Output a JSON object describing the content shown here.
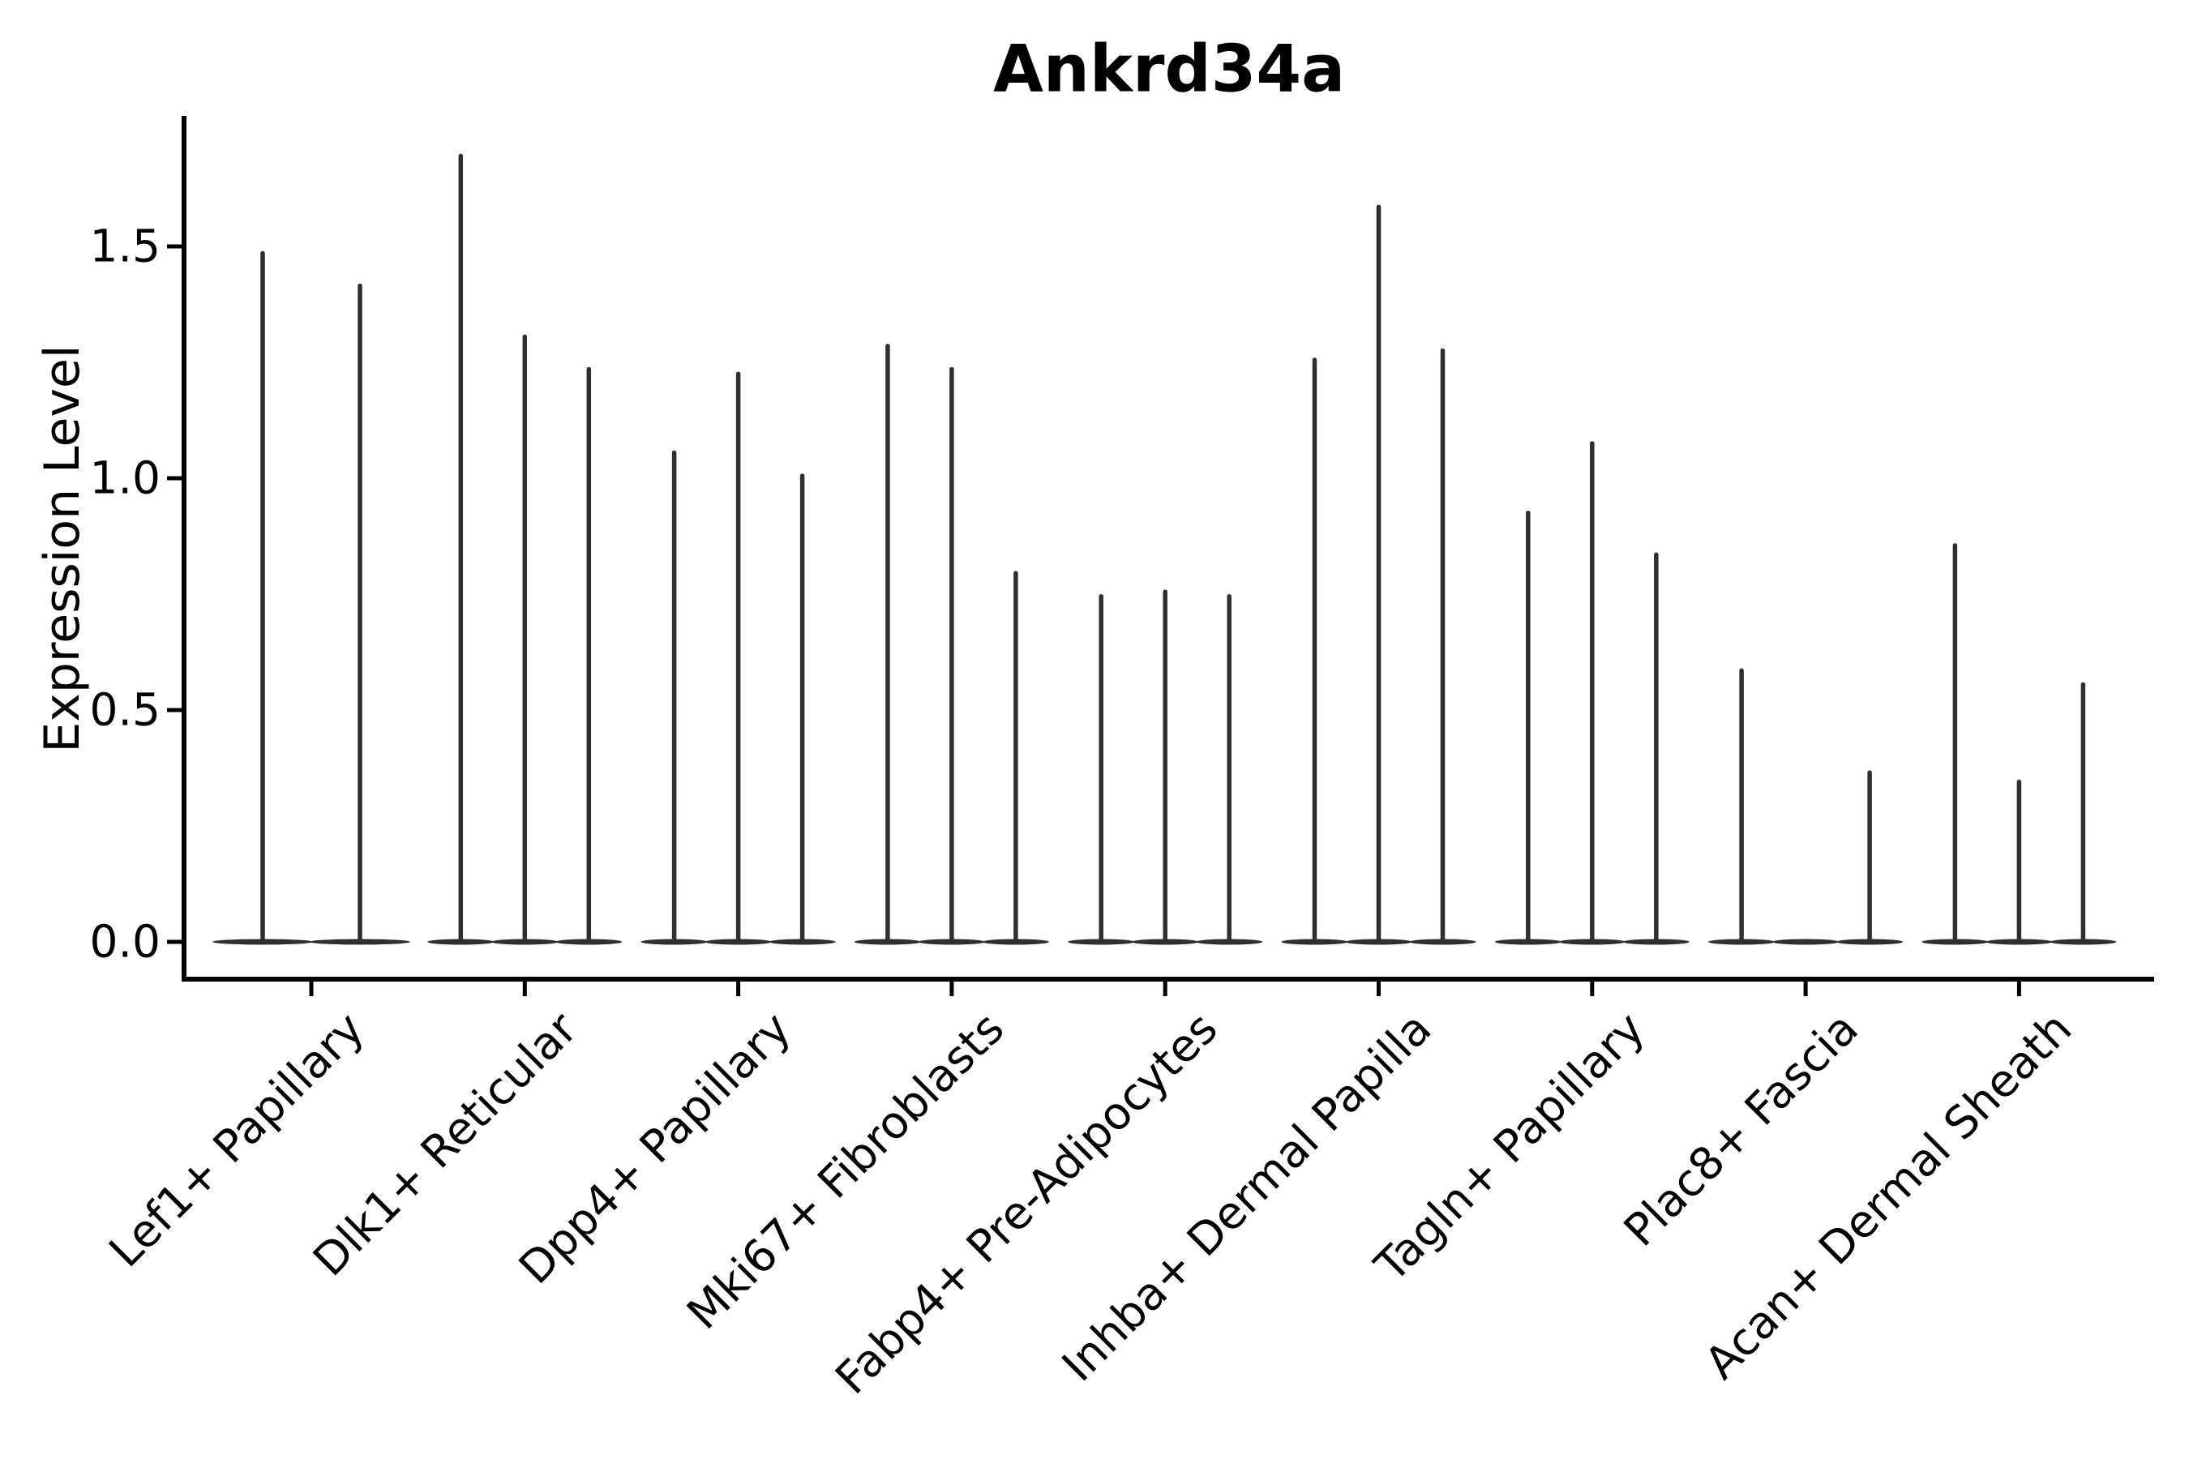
{
  "title": "Ankrd34a",
  "axes": {
    "ylabel": "Expression Level",
    "ytick_labels": [
      "0.0",
      "0.5",
      "1.0",
      "1.5"
    ]
  },
  "chart_data": {
    "type": "violin",
    "title": "Ankrd34a",
    "xlabel": "",
    "ylabel": "Expression Level",
    "ylim": [
      -0.09,
      1.78
    ],
    "yticks": [
      0.0,
      0.5,
      1.0,
      1.5
    ],
    "grid": false,
    "legend": false,
    "ink_color": "#2f2f2f",
    "axis_color": "#000000",
    "categories": [
      "Lef1+ Papillary",
      "Dlk1+ Reticular",
      "Dpp4+ Papillary",
      "Mki67+ Fibroblasts",
      "Fabp4+ Pre-Adipocytes",
      "Inhba+ Dermal Papilla",
      "Tagln+ Papillary",
      "Plac8+ Fascia",
      "Acan+ Dermal Sheath"
    ],
    "violins": [
      {
        "category": "Lef1+ Papillary",
        "maxima": [
          1.49,
          1.42
        ]
      },
      {
        "category": "Dlk1+ Reticular",
        "maxima": [
          1.7,
          1.31,
          1.24
        ]
      },
      {
        "category": "Dpp4+ Papillary",
        "maxima": [
          1.06,
          1.23,
          1.01
        ]
      },
      {
        "category": "Mki67+ Fibroblasts",
        "maxima": [
          1.29,
          1.24,
          0.8
        ]
      },
      {
        "category": "Fabp4+ Pre-Adipocytes",
        "maxima": [
          0.75,
          0.76,
          0.75
        ]
      },
      {
        "category": "Inhba+ Dermal Papilla",
        "maxima": [
          1.26,
          1.59,
          1.28
        ]
      },
      {
        "category": "Tagln+ Papillary",
        "maxima": [
          0.93,
          1.08,
          0.84
        ]
      },
      {
        "category": "Plac8+ Fascia",
        "maxima": [
          0.59,
          0.0,
          0.37
        ]
      },
      {
        "category": "Acan+ Dermal Sheath",
        "maxima": [
          0.86,
          0.35,
          0.56
        ]
      }
    ]
  }
}
